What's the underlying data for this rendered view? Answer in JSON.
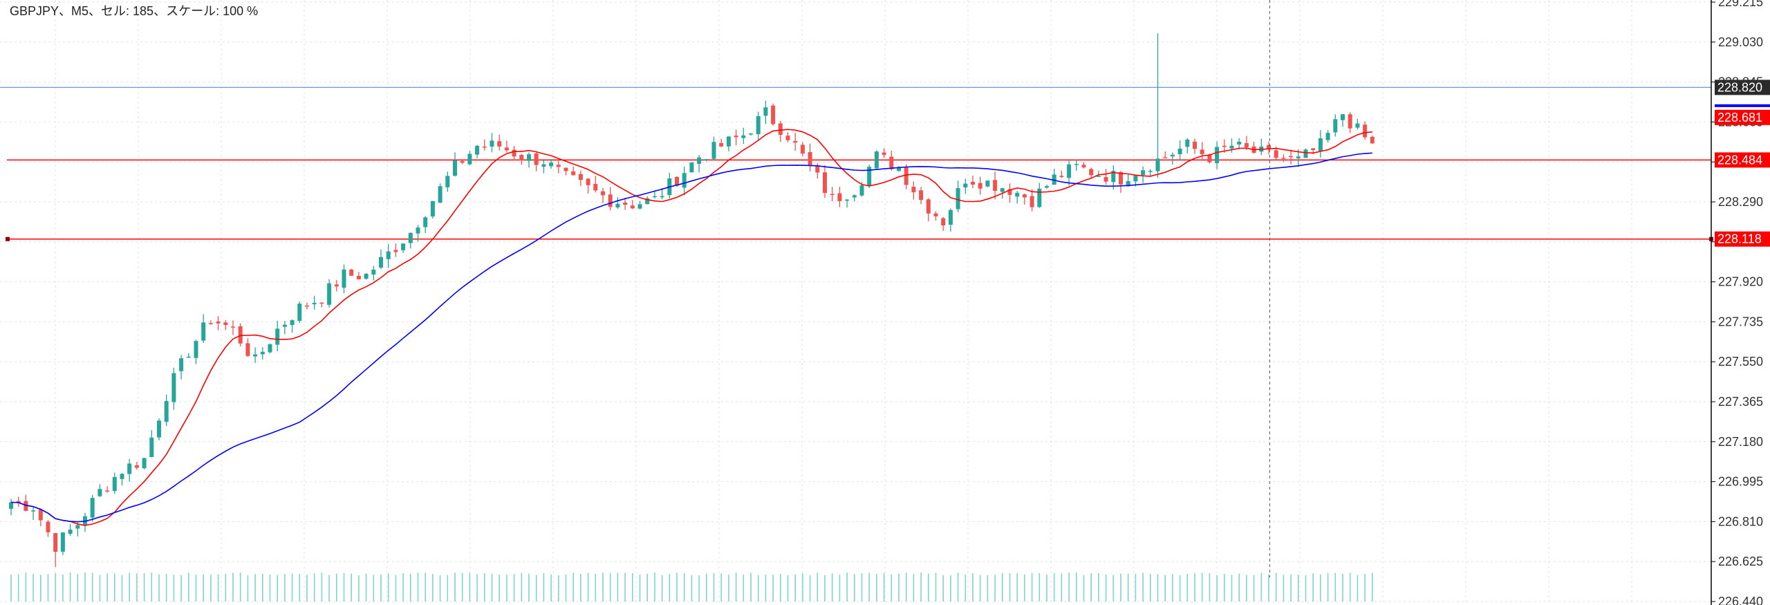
{
  "header": {
    "title": "GBPJPY、M5、セル: 185、スケール: 100 %"
  },
  "colors": {
    "background": "#ffffff",
    "grid": "#e2e2e2",
    "candle_up": "#26a69a",
    "candle_down": "#ef5350",
    "ma_fast": "#ff0000",
    "ma_slow": "#0000ff",
    "h_line": "#ff0000",
    "price_line": "#6a9bd8",
    "volume": "#7fd4d0",
    "axis_text": "#333333"
  },
  "chart_data": {
    "type": "candlestick",
    "symbol": "GBPJPY",
    "timeframe": "M5",
    "ylim": [
      226.44,
      229.215
    ],
    "grid": true,
    "y_ticks": [
      "229.215",
      "229.030",
      "228.845",
      "228.660",
      "228.475",
      "228.290",
      "228.105",
      "227.920",
      "227.735",
      "227.550",
      "227.365",
      "227.180",
      "226.995",
      "226.810",
      "226.625",
      "226.440"
    ],
    "current_price": {
      "label": "228.820",
      "value": 228.82
    },
    "horizontal_lines": [
      {
        "label": "228.484",
        "value": 228.484
      },
      {
        "label": "228.118",
        "value": 228.118
      }
    ],
    "indicator_markers": [
      {
        "label": "228.681",
        "value": 228.681
      }
    ],
    "vertical_marker_fraction": 0.742,
    "n_candles": 185,
    "close_keyframes": [
      [
        0,
        226.9
      ],
      [
        3,
        226.88
      ],
      [
        6,
        226.7
      ],
      [
        9,
        226.8
      ],
      [
        12,
        226.95
      ],
      [
        15,
        227.05
      ],
      [
        18,
        227.1
      ],
      [
        21,
        227.4
      ],
      [
        24,
        227.6
      ],
      [
        27,
        227.75
      ],
      [
        30,
        227.7
      ],
      [
        33,
        227.55
      ],
      [
        36,
        227.7
      ],
      [
        39,
        227.8
      ],
      [
        42,
        227.85
      ],
      [
        45,
        227.95
      ],
      [
        48,
        227.95
      ],
      [
        51,
        228.05
      ],
      [
        54,
        228.15
      ],
      [
        57,
        228.3
      ],
      [
        60,
        228.45
      ],
      [
        63,
        228.55
      ],
      [
        66,
        228.55
      ],
      [
        69,
        228.5
      ],
      [
        72,
        228.48
      ],
      [
        75,
        228.4
      ],
      [
        78,
        228.35
      ],
      [
        81,
        228.3
      ],
      [
        84,
        228.28
      ],
      [
        87,
        228.3
      ],
      [
        90,
        228.4
      ],
      [
        93,
        228.5
      ],
      [
        96,
        228.55
      ],
      [
        99,
        228.6
      ],
      [
        102,
        228.7
      ],
      [
        105,
        228.6
      ],
      [
        108,
        228.45
      ],
      [
        111,
        228.3
      ],
      [
        114,
        228.35
      ],
      [
        117,
        228.5
      ],
      [
        120,
        228.45
      ],
      [
        123,
        228.3
      ],
      [
        126,
        228.2
      ],
      [
        129,
        228.4
      ],
      [
        132,
        228.38
      ],
      [
        135,
        228.35
      ],
      [
        138,
        228.3
      ],
      [
        141,
        228.4
      ],
      [
        144,
        228.45
      ],
      [
        147,
        228.42
      ],
      [
        150,
        228.4
      ],
      [
        153,
        228.45
      ],
      [
        156,
        228.5
      ],
      [
        159,
        228.55
      ],
      [
        162,
        228.5
      ],
      [
        165,
        228.55
      ],
      [
        168,
        228.52
      ],
      [
        171,
        228.5
      ],
      [
        174,
        228.48
      ],
      [
        177,
        228.55
      ],
      [
        180,
        228.7
      ],
      [
        182,
        228.62
      ],
      [
        184,
        228.55
      ]
    ],
    "key_points": [
      {
        "index": 155,
        "high": 229.07
      },
      {
        "index": 6,
        "low": 226.6
      }
    ]
  }
}
